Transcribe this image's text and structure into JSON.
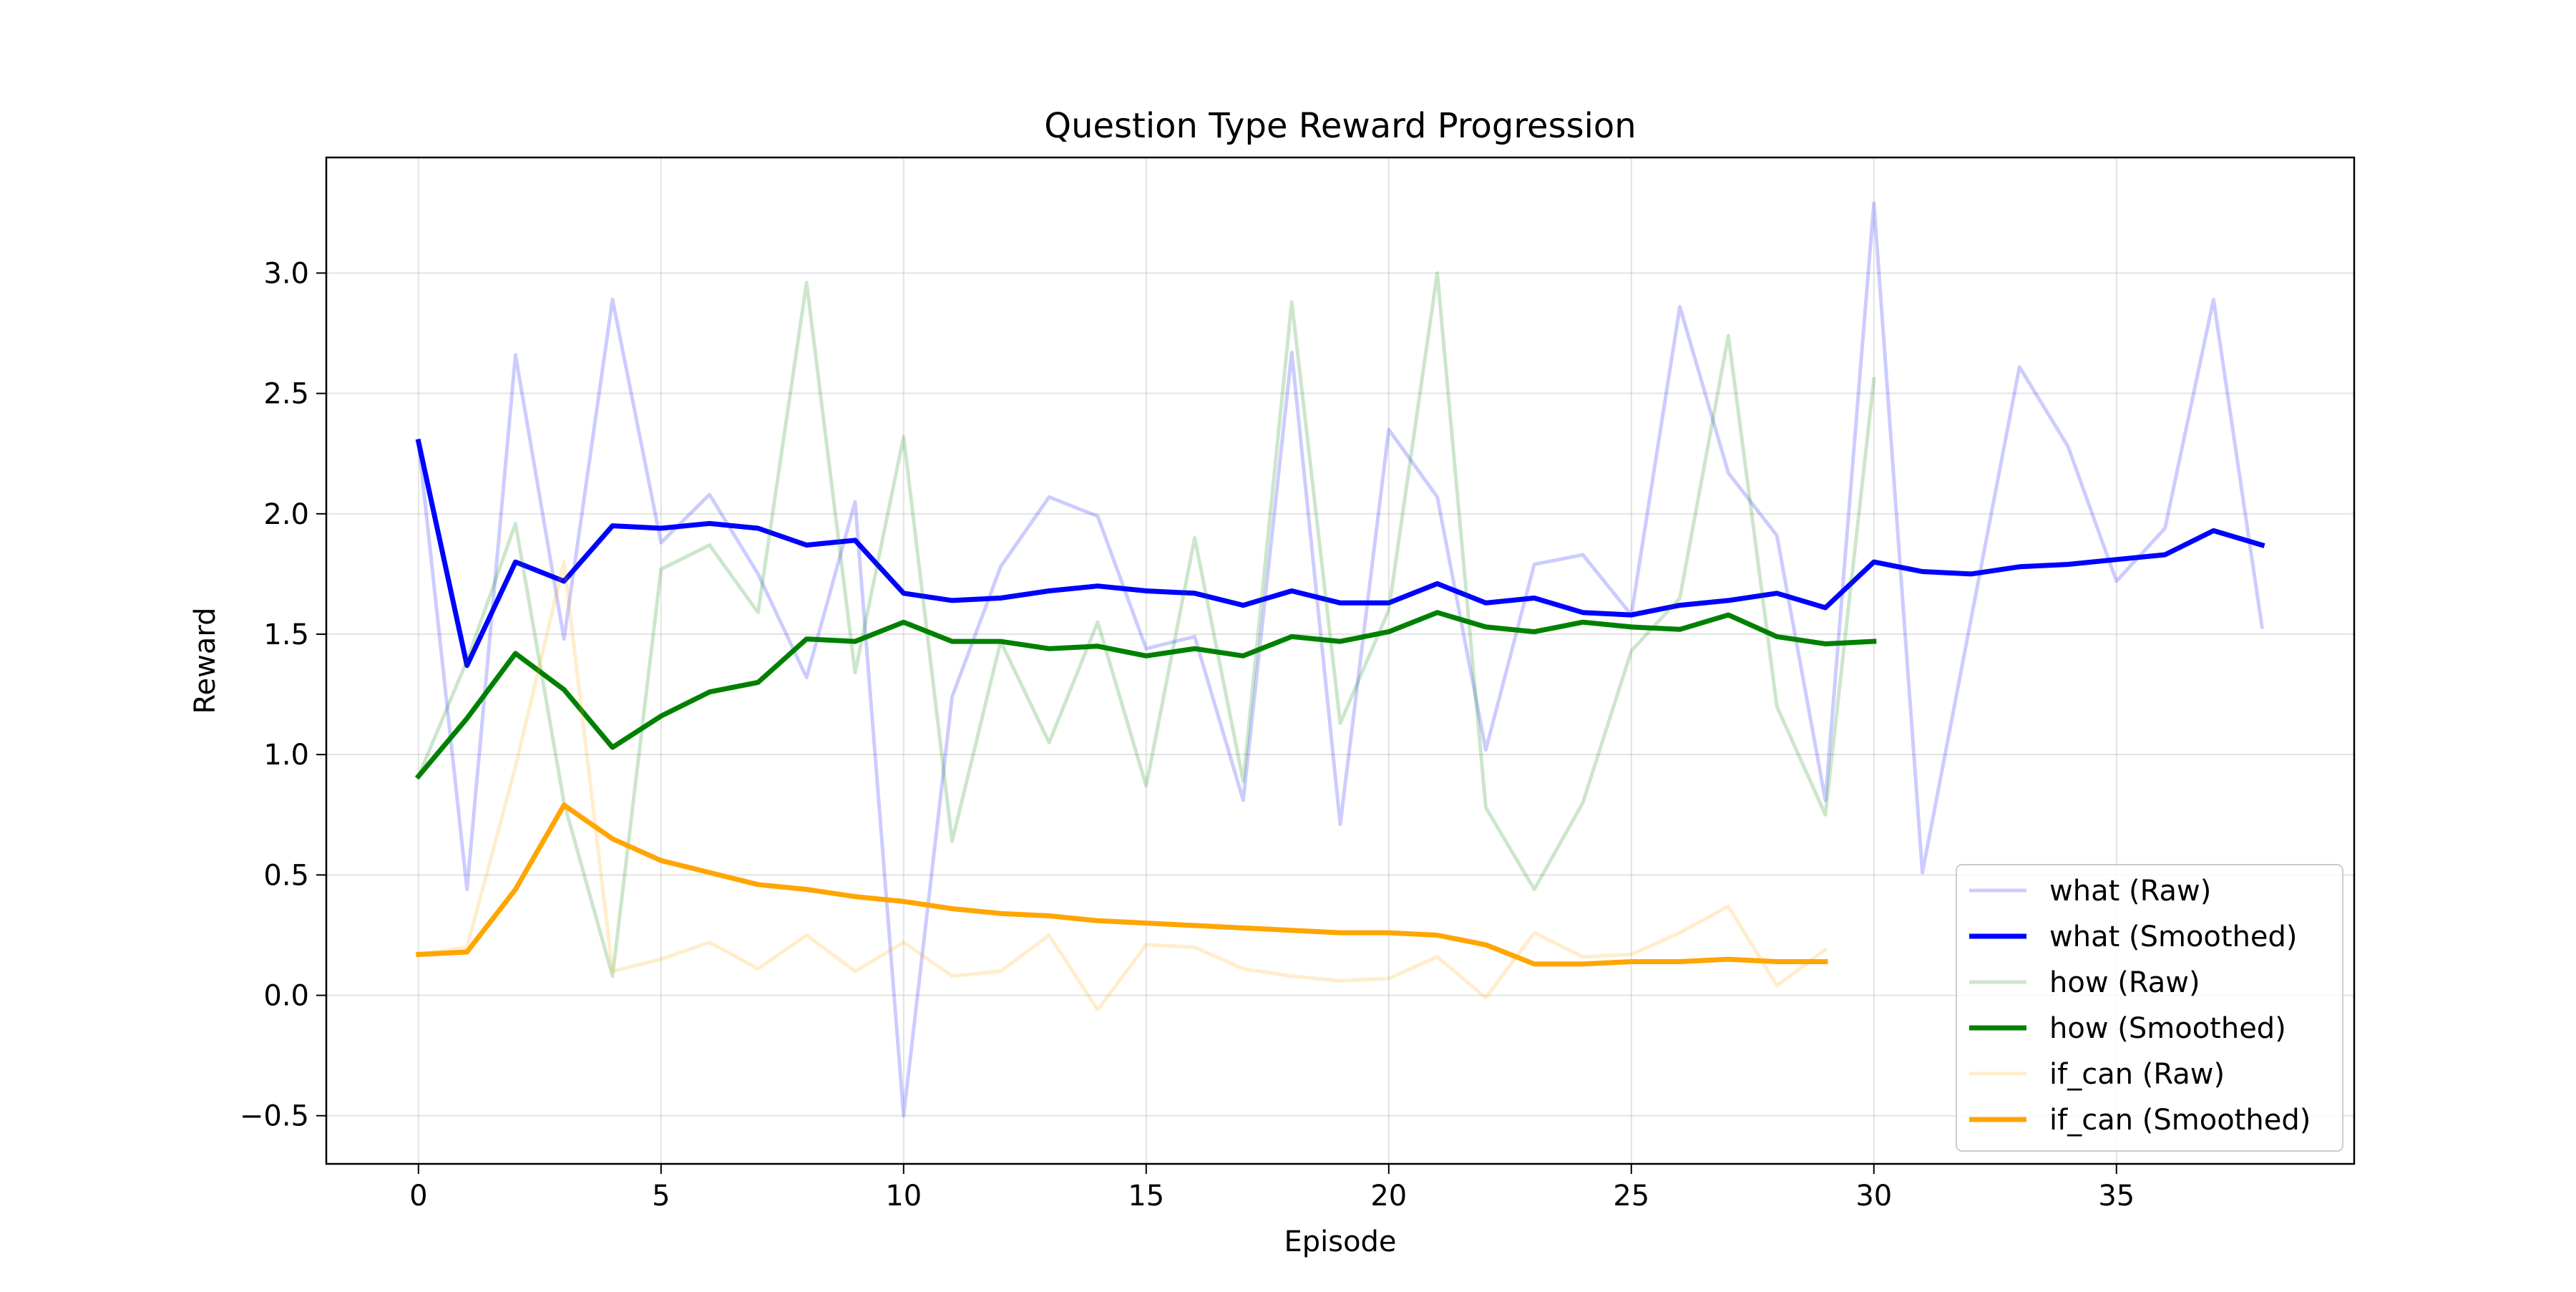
{
  "chart_data": {
    "type": "line",
    "title": "Question Type Reward Progression",
    "xlabel": "Episode",
    "ylabel": "Reward",
    "xlim": [
      -1.9,
      39.9
    ],
    "ylim": [
      -0.7,
      3.48
    ],
    "xticks": [
      0,
      5,
      10,
      15,
      20,
      25,
      30,
      35
    ],
    "yticks": [
      -0.5,
      0.0,
      0.5,
      1.0,
      1.5,
      2.0,
      2.5,
      3.0
    ],
    "ytick_labels": [
      "−0.5",
      "0.0",
      "0.5",
      "1.0",
      "1.5",
      "2.0",
      "2.5",
      "3.0"
    ],
    "grid": true,
    "legend_position": "lower right",
    "series": [
      {
        "name": "what (Raw)",
        "color": "#0000ff",
        "alpha": 0.2,
        "style": "raw",
        "x": [
          0,
          1,
          2,
          3,
          4,
          5,
          6,
          7,
          8,
          9,
          10,
          11,
          12,
          13,
          14,
          15,
          16,
          17,
          18,
          19,
          20,
          21,
          22,
          23,
          24,
          25,
          26,
          27,
          28,
          29,
          30,
          31,
          32,
          33,
          34,
          35,
          36,
          37,
          38
        ],
        "y": [
          2.3,
          0.44,
          2.66,
          1.48,
          2.89,
          1.88,
          2.08,
          1.75,
          1.32,
          2.05,
          -0.5,
          1.24,
          1.78,
          2.07,
          1.99,
          1.44,
          1.49,
          0.81,
          2.67,
          0.71,
          2.35,
          2.07,
          1.02,
          1.79,
          1.83,
          1.58,
          2.86,
          2.17,
          1.91,
          0.81,
          3.29,
          0.51,
          1.56,
          2.61,
          2.28,
          1.72,
          1.94,
          2.89,
          1.53
        ]
      },
      {
        "name": "what (Smoothed)",
        "color": "#0000ff",
        "alpha": 1.0,
        "style": "smoothed",
        "x": [
          0,
          1,
          2,
          3,
          4,
          5,
          6,
          7,
          8,
          9,
          10,
          11,
          12,
          13,
          14,
          15,
          16,
          17,
          18,
          19,
          20,
          21,
          22,
          23,
          24,
          25,
          26,
          27,
          28,
          29,
          30,
          31,
          32,
          33,
          34,
          35,
          36,
          37,
          38
        ],
        "y": [
          2.3,
          1.37,
          1.8,
          1.72,
          1.95,
          1.94,
          1.96,
          1.94,
          1.87,
          1.89,
          1.67,
          1.64,
          1.65,
          1.68,
          1.7,
          1.68,
          1.67,
          1.62,
          1.68,
          1.63,
          1.63,
          1.71,
          1.63,
          1.65,
          1.59,
          1.58,
          1.62,
          1.64,
          1.67,
          1.61,
          1.8,
          1.76,
          1.75,
          1.78,
          1.79,
          1.81,
          1.83,
          1.93,
          1.87
        ]
      },
      {
        "name": "how (Raw)",
        "color": "#008000",
        "alpha": 0.2,
        "style": "raw",
        "x": [
          0,
          1,
          2,
          3,
          4,
          5,
          6,
          7,
          8,
          9,
          10,
          11,
          12,
          13,
          14,
          15,
          16,
          17,
          18,
          19,
          20,
          21,
          22,
          23,
          24,
          25,
          26,
          27,
          28,
          29,
          30
        ],
        "y": [
          0.91,
          1.39,
          1.96,
          0.8,
          0.08,
          1.77,
          1.87,
          1.59,
          2.96,
          1.34,
          2.32,
          0.64,
          1.47,
          1.05,
          1.55,
          0.87,
          1.9,
          0.89,
          2.88,
          1.13,
          1.6,
          3.0,
          0.78,
          0.44,
          0.8,
          1.43,
          1.65,
          2.74,
          1.2,
          0.75,
          2.56
        ]
      },
      {
        "name": "how (Smoothed)",
        "color": "#008000",
        "alpha": 1.0,
        "style": "smoothed",
        "x": [
          0,
          1,
          2,
          3,
          4,
          5,
          6,
          7,
          8,
          9,
          10,
          11,
          12,
          13,
          14,
          15,
          16,
          17,
          18,
          19,
          20,
          21,
          22,
          23,
          24,
          25,
          26,
          27,
          28,
          29,
          30
        ],
        "y": [
          0.91,
          1.15,
          1.42,
          1.27,
          1.03,
          1.16,
          1.26,
          1.3,
          1.48,
          1.47,
          1.55,
          1.47,
          1.47,
          1.44,
          1.45,
          1.41,
          1.44,
          1.41,
          1.49,
          1.47,
          1.51,
          1.59,
          1.53,
          1.51,
          1.55,
          1.53,
          1.52,
          1.58,
          1.49,
          1.46,
          1.47
        ]
      },
      {
        "name": "if_can (Raw)",
        "color": "#ffa500",
        "alpha": 0.2,
        "style": "raw",
        "x": [
          0,
          1,
          2,
          3,
          4,
          5,
          6,
          7,
          8,
          9,
          10,
          11,
          12,
          13,
          14,
          15,
          16,
          17,
          18,
          19,
          20,
          21,
          22,
          23,
          24,
          25,
          26,
          27,
          28,
          29
        ],
        "y": [
          0.17,
          0.2,
          0.95,
          1.8,
          0.1,
          0.15,
          0.22,
          0.11,
          0.25,
          0.1,
          0.22,
          0.08,
          0.1,
          0.25,
          -0.06,
          0.21,
          0.2,
          0.11,
          0.08,
          0.06,
          0.07,
          0.16,
          -0.01,
          0.26,
          0.16,
          0.17,
          0.26,
          0.37,
          0.04,
          0.19
        ]
      },
      {
        "name": "if_can (Smoothed)",
        "color": "#ffa500",
        "alpha": 1.0,
        "style": "smoothed",
        "x": [
          0,
          1,
          2,
          3,
          4,
          5,
          6,
          7,
          8,
          9,
          10,
          11,
          12,
          13,
          14,
          15,
          16,
          17,
          18,
          19,
          20,
          21,
          22,
          23,
          24,
          25,
          26,
          27,
          28,
          29
        ],
        "y": [
          0.17,
          0.18,
          0.44,
          0.79,
          0.65,
          0.56,
          0.51,
          0.46,
          0.44,
          0.41,
          0.39,
          0.36,
          0.34,
          0.33,
          0.31,
          0.3,
          0.29,
          0.28,
          0.27,
          0.26,
          0.26,
          0.25,
          0.21,
          0.13,
          0.13,
          0.14,
          0.14,
          0.15,
          0.14,
          0.14
        ]
      }
    ]
  }
}
